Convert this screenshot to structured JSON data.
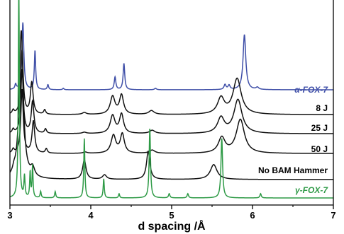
{
  "chart_data": {
    "type": "line",
    "title": "",
    "xlabel": "d spacing /Å",
    "ylabel": "",
    "xlim": [
      3,
      7
    ],
    "x_ticks": [
      "3",
      "4",
      "5",
      "6",
      "7"
    ],
    "grid": false,
    "legend": "none (labels printed beside each trace, right side)",
    "series": [
      {
        "name": "α-FOX-7",
        "color": "#3f4fa8",
        "baseline": 0.02,
        "peaks": [
          [
            3.07,
            0.07,
            0.01
          ],
          [
            3.16,
            0.95,
            0.014
          ],
          [
            3.31,
            0.55,
            0.01
          ],
          [
            3.47,
            0.07,
            0.01
          ],
          [
            3.66,
            0.02,
            0.01
          ],
          [
            4.3,
            0.18,
            0.012
          ],
          [
            4.41,
            0.37,
            0.012
          ],
          [
            4.8,
            0.02,
            0.015
          ],
          [
            5.66,
            0.07,
            0.015
          ],
          [
            5.71,
            0.06,
            0.015
          ],
          [
            5.9,
            0.78,
            0.02
          ],
          [
            6.06,
            0.03,
            0.02
          ]
        ]
      },
      {
        "name": "8 J",
        "color": "#111111",
        "baseline": 0.02,
        "peaks": [
          [
            3.04,
            0.06,
            0.015
          ],
          [
            3.15,
            1.0,
            0.018
          ],
          [
            3.27,
            0.5,
            0.02
          ],
          [
            3.43,
            0.07,
            0.015
          ],
          [
            3.92,
            0.03,
            0.03
          ],
          [
            4.27,
            0.28,
            0.035
          ],
          [
            4.38,
            0.3,
            0.03
          ],
          [
            4.75,
            0.06,
            0.04
          ],
          [
            5.61,
            0.25,
            0.05
          ],
          [
            5.81,
            0.56,
            0.06
          ]
        ]
      },
      {
        "name": "25 J",
        "color": "#111111",
        "baseline": 0.02,
        "peaks": [
          [
            3.04,
            0.06,
            0.015
          ],
          [
            3.15,
            1.0,
            0.018
          ],
          [
            3.28,
            0.5,
            0.02
          ],
          [
            3.44,
            0.07,
            0.015
          ],
          [
            3.92,
            0.02,
            0.03
          ],
          [
            4.27,
            0.28,
            0.035
          ],
          [
            4.38,
            0.3,
            0.03
          ],
          [
            4.76,
            0.05,
            0.04
          ],
          [
            5.61,
            0.24,
            0.05
          ],
          [
            5.82,
            0.53,
            0.06
          ]
        ]
      },
      {
        "name": "50 J",
        "color": "#111111",
        "baseline": 0.02,
        "peaks": [
          [
            3.04,
            0.06,
            0.015
          ],
          [
            3.15,
            1.0,
            0.018
          ],
          [
            3.29,
            0.5,
            0.02
          ],
          [
            3.45,
            0.07,
            0.015
          ],
          [
            3.93,
            0.02,
            0.03
          ],
          [
            4.28,
            0.28,
            0.035
          ],
          [
            4.39,
            0.3,
            0.03
          ],
          [
            4.76,
            0.05,
            0.04
          ],
          [
            5.62,
            0.24,
            0.05
          ],
          [
            5.85,
            0.53,
            0.06
          ]
        ]
      },
      {
        "name": "No BAM Hammer",
        "color": "#111111",
        "baseline": 0.01,
        "peaks": [
          [
            3.05,
            0.03,
            0.02
          ],
          [
            3.14,
            1.0,
            0.03
          ],
          [
            3.28,
            0.06,
            0.03
          ],
          [
            3.92,
            0.13,
            0.025
          ],
          [
            4.17,
            0.03,
            0.03
          ],
          [
            4.71,
            0.19,
            0.025
          ],
          [
            5.52,
            0.1,
            0.05
          ]
        ]
      },
      {
        "name": "γ-FOX-7",
        "color": "#2e9a46",
        "baseline": 0.01,
        "peaks": [
          [
            3.11,
            1.0,
            0.008
          ],
          [
            3.18,
            0.1,
            0.008
          ],
          [
            3.25,
            0.12,
            0.007
          ],
          [
            3.28,
            0.15,
            0.007
          ],
          [
            3.38,
            0.03,
            0.008
          ],
          [
            3.56,
            0.03,
            0.008
          ],
          [
            3.92,
            0.28,
            0.008
          ],
          [
            4.16,
            0.09,
            0.008
          ],
          [
            4.35,
            0.02,
            0.008
          ],
          [
            4.73,
            0.33,
            0.01
          ],
          [
            4.97,
            0.02,
            0.01
          ],
          [
            5.2,
            0.02,
            0.01
          ],
          [
            5.62,
            0.28,
            0.012
          ],
          [
            6.1,
            0.02,
            0.01
          ]
        ]
      }
    ]
  }
}
